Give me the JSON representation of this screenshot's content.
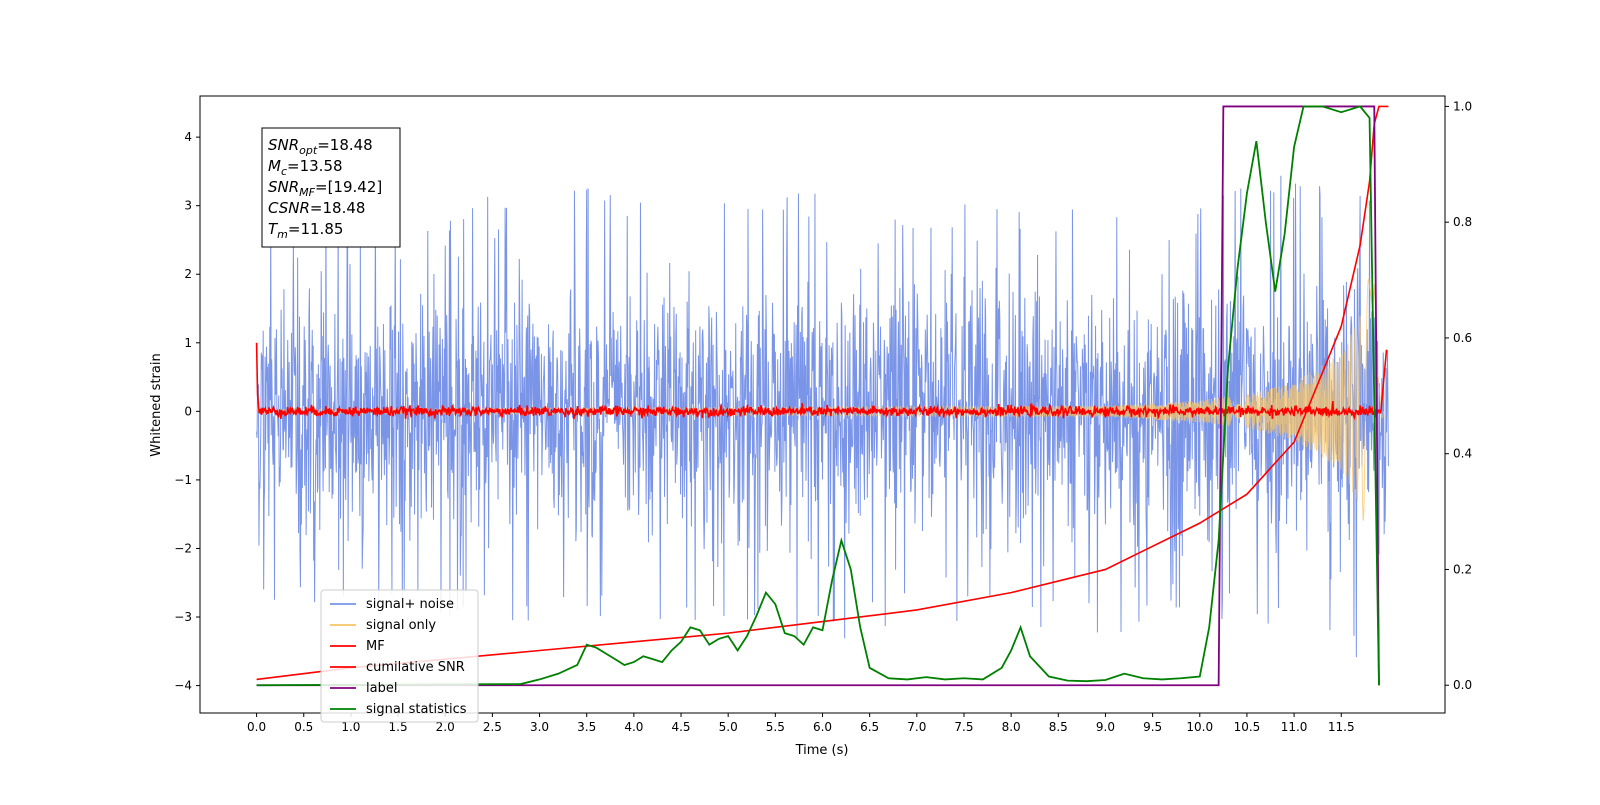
{
  "chart_data": {
    "type": "line",
    "xlabel": "Time (s)",
    "ylabel": "Whitened strain",
    "xlim": [
      -0.6,
      12.6
    ],
    "ylim": [
      -4.4,
      4.6
    ],
    "y2lim": [
      -0.048,
      1.018
    ],
    "xticks": [
      0.0,
      0.5,
      1.0,
      1.5,
      2.0,
      2.5,
      3.0,
      3.5,
      4.0,
      4.5,
      5.0,
      5.5,
      6.0,
      6.5,
      7.0,
      7.5,
      8.0,
      8.5,
      9.0,
      9.5,
      10.0,
      10.5,
      11.0,
      11.5
    ],
    "xtick_labels": [
      "0.0",
      "0.5",
      "1.0",
      "1.5",
      "2.0",
      "2.5",
      "3.0",
      "3.5",
      "4.0",
      "4.5",
      "5.0",
      "5.5",
      "6.0",
      "6.5",
      "7.0",
      "7.5",
      "8.0",
      "8.5",
      "9.0",
      "9.5",
      "10.0",
      "10.5",
      "11.0",
      "11.5"
    ],
    "yticks": [
      -4,
      -3,
      -2,
      -1,
      0,
      1,
      2,
      3,
      4
    ],
    "ytick_labels": [
      "−4",
      "−3",
      "−2",
      "−1",
      "0",
      "1",
      "2",
      "3",
      "4"
    ],
    "y2ticks": [
      0.0,
      0.2,
      0.4,
      0.6,
      0.8,
      1.0
    ],
    "y2tick_labels": [
      "0.0",
      "0.2",
      "0.4",
      "0.6",
      "0.8",
      "1.0"
    ],
    "grid": false,
    "legend_position": "lower-left",
    "annotation": {
      "lines": [
        {
          "base": "SNR",
          "sub": "opt",
          "rest": "=18.48"
        },
        {
          "base": "M",
          "sub": "c",
          "rest": "=13.58"
        },
        {
          "base": "SNR",
          "sub": "MF",
          "rest": "=[19.42]"
        },
        {
          "base": "CSNR",
          "sub": "",
          "rest": "=18.48"
        },
        {
          "base": "T",
          "sub": "m",
          "rest": "=11.85"
        }
      ]
    },
    "series": [
      {
        "name": "signal+ noise",
        "color": "#7a95e8",
        "axis": "left",
        "kind": "noise",
        "t_range": [
          0.0,
          12.0
        ],
        "envelope_max": [
          [
            0.0,
            3.3
          ],
          [
            1.0,
            3.0
          ],
          [
            2.0,
            3.0
          ],
          [
            3.0,
            3.7
          ],
          [
            4.0,
            3.2
          ],
          [
            5.0,
            3.2
          ],
          [
            6.0,
            3.2
          ],
          [
            7.0,
            3.0
          ],
          [
            8.0,
            3.1
          ],
          [
            9.0,
            3.0
          ],
          [
            10.0,
            3.0
          ],
          [
            10.5,
            3.3
          ],
          [
            11.0,
            3.5
          ],
          [
            11.5,
            3.1
          ],
          [
            11.95,
            3.3
          ]
        ],
        "envelope_min": [
          [
            0.0,
            -2.9
          ],
          [
            1.0,
            -3.0
          ],
          [
            2.0,
            -3.0
          ],
          [
            3.0,
            -3.2
          ],
          [
            4.0,
            -3.0
          ],
          [
            5.0,
            -3.1
          ],
          [
            6.0,
            -3.5
          ],
          [
            7.0,
            -3.0
          ],
          [
            8.0,
            -3.2
          ],
          [
            9.0,
            -3.3
          ],
          [
            10.0,
            -3.0
          ],
          [
            10.5,
            -3.5
          ],
          [
            11.0,
            -3.1
          ],
          [
            11.85,
            -3.8
          ],
          [
            11.95,
            -3.3
          ]
        ]
      },
      {
        "name": "signal only",
        "color": "#f5c46a",
        "axis": "left",
        "kind": "chirp",
        "amplitude_envelope": [
          [
            0.0,
            0.03
          ],
          [
            9.0,
            0.08
          ],
          [
            10.0,
            0.16
          ],
          [
            10.5,
            0.25
          ],
          [
            11.0,
            0.42
          ],
          [
            11.5,
            0.85
          ],
          [
            11.7,
            1.4
          ],
          [
            11.8,
            2.0
          ],
          [
            11.85,
            3.4
          ],
          [
            11.88,
            0.6
          ],
          [
            11.95,
            0.0
          ]
        ]
      },
      {
        "name": "MF",
        "color": "#ff0000",
        "axis": "left",
        "kind": "mf",
        "baseline": 0.0,
        "jitter": 0.06,
        "start_value": 1.0,
        "end_value": 0.9
      },
      {
        "name": "cumilative SNR",
        "color": "#ff0000",
        "axis": "right",
        "x": [
          0.0,
          1.0,
          2.0,
          3.0,
          4.0,
          5.0,
          6.0,
          7.0,
          8.0,
          9.0,
          10.0,
          10.5,
          11.0,
          11.5,
          11.7,
          11.8,
          11.85,
          11.9,
          12.0
        ],
        "y": [
          0.01,
          0.03,
          0.045,
          0.06,
          0.075,
          0.09,
          0.11,
          0.13,
          0.16,
          0.2,
          0.28,
          0.33,
          0.42,
          0.62,
          0.76,
          0.87,
          0.97,
          1.0,
          1.0
        ]
      },
      {
        "name": "label",
        "color": "#800080",
        "axis": "right",
        "x": [
          0.0,
          10.2,
          10.25,
          11.85,
          11.9
        ],
        "y": [
          0.0,
          0.0,
          1.0,
          1.0,
          0.0
        ]
      },
      {
        "name": "signal statistics",
        "color": "#008000",
        "axis": "right",
        "x": [
          0.0,
          2.8,
          3.0,
          3.2,
          3.4,
          3.5,
          3.6,
          3.7,
          3.8,
          3.9,
          4.0,
          4.1,
          4.2,
          4.3,
          4.4,
          4.5,
          4.6,
          4.7,
          4.8,
          4.9,
          5.0,
          5.1,
          5.2,
          5.3,
          5.4,
          5.5,
          5.6,
          5.7,
          5.8,
          5.9,
          6.0,
          6.1,
          6.2,
          6.3,
          6.4,
          6.5,
          6.7,
          6.9,
          7.1,
          7.3,
          7.5,
          7.7,
          7.9,
          8.0,
          8.1,
          8.2,
          8.4,
          8.6,
          8.8,
          9.0,
          9.2,
          9.4,
          9.6,
          9.8,
          10.0,
          10.1,
          10.2,
          10.3,
          10.4,
          10.5,
          10.6,
          10.7,
          10.8,
          10.9,
          11.0,
          11.1,
          11.3,
          11.5,
          11.7,
          11.8,
          11.9
        ],
        "y": [
          0.0,
          0.002,
          0.01,
          0.02,
          0.035,
          0.07,
          0.065,
          0.055,
          0.045,
          0.035,
          0.04,
          0.05,
          0.045,
          0.04,
          0.06,
          0.075,
          0.1,
          0.095,
          0.07,
          0.08,
          0.085,
          0.06,
          0.085,
          0.12,
          0.16,
          0.14,
          0.09,
          0.085,
          0.07,
          0.1,
          0.095,
          0.18,
          0.25,
          0.2,
          0.1,
          0.03,
          0.012,
          0.01,
          0.014,
          0.01,
          0.012,
          0.01,
          0.03,
          0.06,
          0.1,
          0.05,
          0.015,
          0.008,
          0.007,
          0.009,
          0.02,
          0.012,
          0.01,
          0.012,
          0.015,
          0.1,
          0.25,
          0.55,
          0.72,
          0.85,
          0.94,
          0.8,
          0.68,
          0.78,
          0.93,
          1.0,
          1.0,
          0.99,
          1.0,
          0.98,
          0.0
        ]
      }
    ]
  }
}
